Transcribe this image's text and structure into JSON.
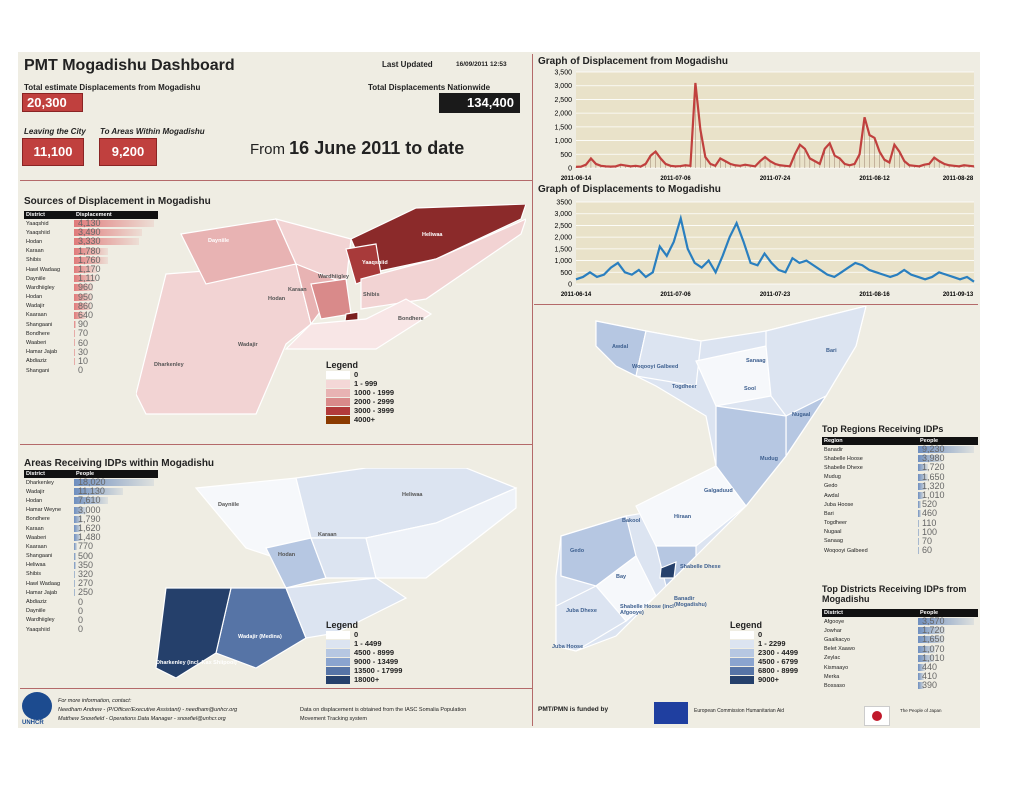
{
  "header": {
    "title": "PMT Mogadishu Dashboard",
    "last_updated_label": "Last Updated",
    "last_updated_value": "16/09/2011 12:53",
    "total_from_label": "Total estimate Displacements from Mogadishu",
    "total_from_value": "20,300",
    "nationwide_label": "Total Displacements Nationwide",
    "nationwide_value": "134,400",
    "leaving_label": "Leaving the City",
    "leaving_value": "11,100",
    "within_label": "To Areas Within Mogadishu",
    "within_value": "9,200",
    "from_prefix": "From",
    "from_date": "16 June 2011 to date"
  },
  "sources": {
    "title": "Sources of Displacement in Mogadishu",
    "col_district": "District",
    "col_value": "Displacement",
    "bar_color": "#e07b7b",
    "max": 4130,
    "rows": [
      {
        "district": "Yaaqshid",
        "value": 4130,
        "label": "4,130"
      },
      {
        "district": "Yaaqshiid",
        "value": 3490,
        "label": "3,490"
      },
      {
        "district": "Hodan",
        "value": 3330,
        "label": "3,330"
      },
      {
        "district": "Karaan",
        "value": 1780,
        "label": "1,780"
      },
      {
        "district": "Shibis",
        "value": 1760,
        "label": "1,760"
      },
      {
        "district": "Hawl Wadaag",
        "value": 1170,
        "label": "1,170"
      },
      {
        "district": "Dayniile",
        "value": 1110,
        "label": "1,110"
      },
      {
        "district": "Wardhiigley",
        "value": 960,
        "label": "960"
      },
      {
        "district": "Hodan",
        "value": 950,
        "label": "950"
      },
      {
        "district": "Wadajir",
        "value": 860,
        "label": "860"
      },
      {
        "district": "Kaaraan",
        "value": 640,
        "label": "640"
      },
      {
        "district": "Shangaani",
        "value": 90,
        "label": "90"
      },
      {
        "district": "Bondhere",
        "value": 70,
        "label": "70"
      },
      {
        "district": "Waaberi",
        "value": 60,
        "label": "60"
      },
      {
        "district": "Hamar Jajab",
        "value": 30,
        "label": "30"
      },
      {
        "district": "Abdiaziz",
        "value": 10,
        "label": "10"
      },
      {
        "district": "Shangani",
        "value": 0,
        "label": "0"
      }
    ],
    "legend": {
      "title": "Legend",
      "items": [
        {
          "label": "0",
          "color": "#ffffff"
        },
        {
          "label": "1 - 999",
          "color": "#f4d7d7"
        },
        {
          "label": "1000 - 1999",
          "color": "#e8b3b3"
        },
        {
          "label": "2000 - 2999",
          "color": "#d98a8a"
        },
        {
          "label": "3000 - 3999",
          "color": "#b23a3a"
        },
        {
          "label": "4000+",
          "color": "#8b3a00"
        }
      ]
    },
    "map_labels": [
      "Dayniile",
      "Yaaqshiid",
      "Hodan",
      "Wardhiigley",
      "Karaan",
      "Heliwaa",
      "Shibis",
      "Bondhere",
      "Dharkenley",
      "Wadajir"
    ]
  },
  "receiving": {
    "title": "Areas Receiving IDPs within Mogadishu",
    "col_district": "District",
    "col_value": "People",
    "bar_color": "#6f8fbf",
    "max": 18020,
    "rows": [
      {
        "district": "Dharkenley",
        "value": 18020,
        "label": "18,020"
      },
      {
        "district": "Wadajir",
        "value": 11130,
        "label": "11,130"
      },
      {
        "district": "Hodan",
        "value": 7610,
        "label": "7,610"
      },
      {
        "district": "Hamar Weyne",
        "value": 3000,
        "label": "3,000"
      },
      {
        "district": "Bondhere",
        "value": 1790,
        "label": "1,790"
      },
      {
        "district": "Karaan",
        "value": 1620,
        "label": "1,620"
      },
      {
        "district": "Waaberi",
        "value": 1480,
        "label": "1,480"
      },
      {
        "district": "Kaaraan",
        "value": 770,
        "label": "770"
      },
      {
        "district": "Shangaani",
        "value": 500,
        "label": "500"
      },
      {
        "district": "Heliwaa",
        "value": 350,
        "label": "350"
      },
      {
        "district": "Shibis",
        "value": 320,
        "label": "320"
      },
      {
        "district": "Hawl Wadaag",
        "value": 270,
        "label": "270"
      },
      {
        "district": "Hamar Jajab",
        "value": 250,
        "label": "250"
      },
      {
        "district": "Abdiaziz",
        "value": 0,
        "label": "0"
      },
      {
        "district": "Dayniile",
        "value": 0,
        "label": "0"
      },
      {
        "district": "Wardhiigley",
        "value": 0,
        "label": "0"
      },
      {
        "district": "Yaaqshiid",
        "value": 0,
        "label": "0"
      }
    ],
    "legend": {
      "title": "Legend",
      "items": [
        {
          "label": "0",
          "color": "#ffffff"
        },
        {
          "label": "1 - 4499",
          "color": "#dce4f1"
        },
        {
          "label": "4500 - 8999",
          "color": "#b6c7e2"
        },
        {
          "label": "9000 - 13499",
          "color": "#8aa4cf"
        },
        {
          "label": "13500 - 17999",
          "color": "#5674a6"
        },
        {
          "label": "18000+",
          "color": "#25406b"
        }
      ]
    },
    "map_labels": [
      "Dharkenley (incl. Kax Shiipool)",
      "Wadajir (Medina)",
      "Dayniile",
      "Heliwaa",
      "Karaan",
      "Hodan"
    ]
  },
  "graph_from": {
    "title": "Graph of Displacement from Mogadishu",
    "color": "#c0403e",
    "y_ticks": [
      "0",
      "500",
      "1,000",
      "1,500",
      "2,000",
      "2,500",
      "3,000",
      "3,500"
    ],
    "x_ticks": [
      "2011-06-14",
      "2011-07-06",
      "2011-07-24",
      "2011-08-12",
      "2011-08-28"
    ]
  },
  "graph_to": {
    "title": "Graph of Displacements to Mogadishu",
    "color": "#2a7fbf",
    "y_ticks": [
      "0",
      "500",
      "1,000",
      "1,500",
      "2,000",
      "2,500",
      "3,000",
      "3500"
    ],
    "x_ticks": [
      "2011-06-14",
      "2011-07-06",
      "2011-07-23",
      "2011-08-16",
      "2011-09-13"
    ]
  },
  "regions": {
    "title": "Top Regions Receiving IDPs",
    "col_region": "Region",
    "col_value": "People",
    "bar_color": "#6f8fbf",
    "max": 9230,
    "rows": [
      {
        "name": "Banadir",
        "value": 9230,
        "label": "9,230"
      },
      {
        "name": "Shabelle Hoose",
        "value": 3980,
        "label": "3,980"
      },
      {
        "name": "Shabelle Dhexe",
        "value": 1720,
        "label": "1,720"
      },
      {
        "name": "Mudug",
        "value": 1650,
        "label": "1,650"
      },
      {
        "name": "Gedo",
        "value": 1320,
        "label": "1,320"
      },
      {
        "name": "Awdal",
        "value": 1010,
        "label": "1,010"
      },
      {
        "name": "Juba Hoose",
        "value": 520,
        "label": "520"
      },
      {
        "name": "Bari",
        "value": 460,
        "label": "460"
      },
      {
        "name": "Togdheer",
        "value": 110,
        "label": "110"
      },
      {
        "name": "Nugaal",
        "value": 100,
        "label": "100"
      },
      {
        "name": "Sanaag",
        "value": 70,
        "label": "70"
      },
      {
        "name": "Woqooyi Galbeed",
        "value": 60,
        "label": "60"
      }
    ]
  },
  "districts": {
    "title": "Top Districts Receiving IDPs from Mogadishu",
    "col_district": "District",
    "col_value": "People",
    "bar_color": "#6f8fbf",
    "max": 3570,
    "rows": [
      {
        "name": "Afgooye",
        "value": 3570,
        "label": "3,570"
      },
      {
        "name": "Jowhar",
        "value": 1720,
        "label": "1,720"
      },
      {
        "name": "Gaalkacyo",
        "value": 1650,
        "label": "1,650"
      },
      {
        "name": "Belet Xaawo",
        "value": 1070,
        "label": "1,070"
      },
      {
        "name": "Zeylac",
        "value": 1010,
        "label": "1,010"
      },
      {
        "name": "Kismaayo",
        "value": 440,
        "label": "440"
      },
      {
        "name": "Merka",
        "value": 410,
        "label": "410"
      },
      {
        "name": "Bossaso",
        "value": 390,
        "label": "390"
      }
    ]
  },
  "somalia_legend": {
    "title": "Legend",
    "items": [
      {
        "label": "0",
        "color": "#ffffff"
      },
      {
        "label": "1 - 2299",
        "color": "#dce4f1"
      },
      {
        "label": "2300 - 4499",
        "color": "#b6c7e2"
      },
      {
        "label": "4500 - 6799",
        "color": "#8aa4cf"
      },
      {
        "label": "6800 - 8999",
        "color": "#5674a6"
      },
      {
        "label": "9000+",
        "color": "#25406b"
      }
    ]
  },
  "somalia_labels": [
    "Awdal",
    "Woqooyi Galbeed",
    "Togdheer",
    "Sool",
    "Sanaag",
    "Bari",
    "Nugaal",
    "Mudug",
    "Galgaduud",
    "Hiraan",
    "Bakool",
    "Gedo",
    "Bay",
    "Shabelle Dhexe",
    "Shabelle Hoose (incl Afgooye)",
    "Banadir (Mogadishu)",
    "Juba Dhexe",
    "Juba Hoose"
  ],
  "footer": {
    "contact_title": "For more information, contact:",
    "contact_1": "Needham Andrew - (P/Officer/Executive Assistant) - needham@unhcr.org",
    "contact_2": "Matthew Snowfield - Operations Data Manager - snowfiel@unhcr.org",
    "logo_text": "UNHCR",
    "data_note_1": "Data on displacement is obtained from the IASC Somalia Population",
    "data_note_2": "Movement Tracking system",
    "funded": "PMT/PMN is funded by",
    "eu": "European Commission Humanitarian Aid",
    "japan": "The People of Japan"
  },
  "chart_data": [
    {
      "type": "line",
      "title": "Graph of Displacement from Mogadishu",
      "ylim": [
        0,
        3500
      ],
      "x_ticks": [
        "2011-06-14",
        "2011-07-06",
        "2011-07-24",
        "2011-08-12",
        "2011-08-28"
      ],
      "series": [
        {
          "values": [
            40,
            50,
            120,
            350,
            150,
            80,
            60,
            50,
            60,
            120,
            90,
            60,
            80,
            50,
            150,
            450,
            600,
            350,
            150,
            80,
            60,
            70,
            100,
            80,
            3100,
            1400,
            400,
            150,
            80,
            350,
            250,
            150,
            100,
            80,
            120,
            90,
            60,
            250,
            400,
            250,
            150,
            100,
            80,
            60,
            500,
            850,
            700,
            350,
            250,
            150,
            700,
            900,
            450,
            350,
            150,
            100,
            150,
            500,
            1850,
            1200,
            1100,
            600,
            300,
            200,
            850,
            600,
            250,
            100,
            80,
            60,
            120,
            150,
            380,
            250,
            150,
            100,
            80,
            60,
            100,
            80,
            60
          ]
        }
      ]
    },
    {
      "type": "line",
      "title": "Graph of Displacements to Mogadishu",
      "ylim": [
        0,
        3500
      ],
      "x_ticks": [
        "2011-06-14",
        "2011-07-06",
        "2011-07-23",
        "2011-08-16",
        "2011-09-13"
      ],
      "series": [
        {
          "values": [
            200,
            300,
            500,
            300,
            400,
            700,
            900,
            500,
            400,
            600,
            300,
            500,
            1600,
            1200,
            1800,
            2800,
            1500,
            900,
            700,
            1000,
            500,
            1200,
            2000,
            2600,
            1800,
            900,
            800,
            1300,
            900,
            600,
            500,
            1100,
            900,
            1000,
            800,
            600,
            400,
            300,
            500,
            700,
            900,
            800,
            600,
            500,
            400,
            300,
            400,
            600,
            400,
            300,
            200,
            300,
            500,
            400,
            300,
            200,
            300,
            100
          ]
        }
      ]
    }
  ]
}
